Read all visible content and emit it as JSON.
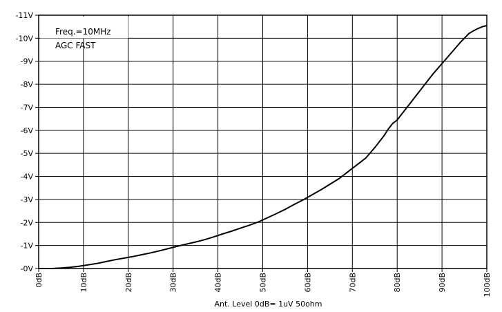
{
  "chart_data": {
    "type": "line",
    "title": "",
    "xlabel": "Ant. Level 0dB= 1uV 50ohm",
    "ylabel": "",
    "xlim": [
      0,
      100
    ],
    "ylim": [
      0,
      -11
    ],
    "grid": true,
    "x_ticks": [
      {
        "value": 0,
        "label": "0dB"
      },
      {
        "value": 10,
        "label": "10dB"
      },
      {
        "value": 20,
        "label": "20dB"
      },
      {
        "value": 30,
        "label": "30dB"
      },
      {
        "value": 40,
        "label": "40dB"
      },
      {
        "value": 50,
        "label": "50dB"
      },
      {
        "value": 60,
        "label": "60dB"
      },
      {
        "value": 70,
        "label": "70dB"
      },
      {
        "value": 80,
        "label": "80dB"
      },
      {
        "value": 90,
        "label": "90dB"
      },
      {
        "value": 100,
        "label": "100dB"
      }
    ],
    "y_ticks": [
      {
        "value": 0,
        "label": "-0V"
      },
      {
        "value": -1,
        "label": "-1V"
      },
      {
        "value": -2,
        "label": "-2V"
      },
      {
        "value": -3,
        "label": "-3V"
      },
      {
        "value": -4,
        "label": "-4V"
      },
      {
        "value": -5,
        "label": "-5V"
      },
      {
        "value": -6,
        "label": "-6V"
      },
      {
        "value": -7,
        "label": "-7V"
      },
      {
        "value": -8,
        "label": "-8V"
      },
      {
        "value": -9,
        "label": "-9V"
      },
      {
        "value": -10,
        "label": "-10V"
      },
      {
        "value": -11,
        "label": "-11V"
      }
    ],
    "annotation_lines": [
      "Freq.=10MHz",
      "AGC FAST"
    ],
    "series": [
      {
        "color": "#000000",
        "x": [
          0,
          3,
          5,
          7,
          9,
          11,
          13,
          15,
          17,
          19,
          21,
          23,
          25,
          27,
          29,
          31,
          33,
          35,
          37,
          39,
          41,
          43,
          45,
          47,
          49,
          51,
          53,
          55,
          57,
          59,
          61,
          63,
          65,
          67,
          69,
          71,
          72,
          73,
          75,
          76,
          77,
          78,
          79,
          80,
          82,
          84,
          86,
          88,
          90,
          92,
          94,
          95,
          96,
          97,
          98,
          99,
          100
        ],
        "y": [
          0,
          0,
          -0.02,
          -0.05,
          -0.1,
          -0.16,
          -0.22,
          -0.3,
          -0.38,
          -0.45,
          -0.52,
          -0.6,
          -0.68,
          -0.77,
          -0.87,
          -0.97,
          -1.06,
          -1.15,
          -1.25,
          -1.37,
          -1.5,
          -1.62,
          -1.75,
          -1.88,
          -2.02,
          -2.2,
          -2.38,
          -2.57,
          -2.78,
          -2.98,
          -3.2,
          -3.42,
          -3.66,
          -3.9,
          -4.2,
          -4.5,
          -4.65,
          -4.8,
          -5.25,
          -5.5,
          -5.75,
          -6.05,
          -6.3,
          -6.45,
          -6.95,
          -7.45,
          -7.95,
          -8.45,
          -8.9,
          -9.35,
          -9.8,
          -10.0,
          -10.2,
          -10.32,
          -10.42,
          -10.5,
          -10.55
        ]
      }
    ]
  }
}
